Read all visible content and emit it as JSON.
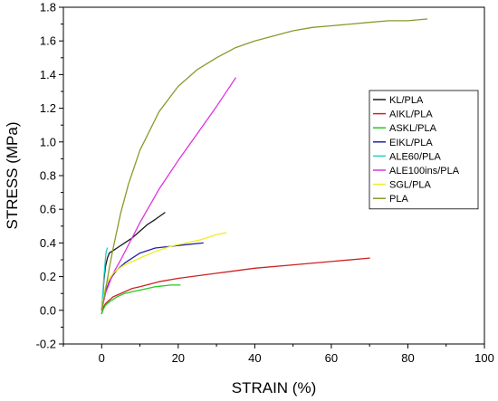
{
  "chart_data": {
    "type": "line",
    "title": "",
    "xlabel": "STRAIN (%)",
    "ylabel": "STRESS (MPa)",
    "xlim": [
      -10,
      100
    ],
    "ylim": [
      -0.2,
      1.8
    ],
    "xticks": [
      0,
      20,
      40,
      60,
      80,
      100
    ],
    "yticks": [
      -0.2,
      0.0,
      0.2,
      0.4,
      0.6,
      0.8,
      1.0,
      1.2,
      1.4,
      1.6,
      1.8
    ],
    "xtick_labels": [
      "0",
      "20",
      "40",
      "60",
      "80",
      "100"
    ],
    "ytick_labels": [
      "-0.2",
      "0.0",
      "0.2",
      "0.4",
      "0.6",
      "0.8",
      "1.0",
      "1.2",
      "1.4",
      "1.6",
      "1.8"
    ],
    "grid": false,
    "legend_position": "right",
    "series": [
      {
        "name": "KL/PLA",
        "color": "#1a1a1a",
        "x": [
          0,
          0.3,
          0.6,
          1.0,
          1.5,
          2,
          4,
          6,
          8,
          10,
          12,
          14,
          16.5
        ],
        "y": [
          0,
          0.08,
          0.18,
          0.26,
          0.31,
          0.34,
          0.37,
          0.4,
          0.43,
          0.47,
          0.51,
          0.54,
          0.58
        ]
      },
      {
        "name": "AIKL/PLA",
        "color": "#cc2222",
        "x": [
          0,
          0.5,
          1,
          2,
          3,
          5,
          8,
          10,
          15,
          20,
          30,
          40,
          50,
          60,
          70
        ],
        "y": [
          -0.02,
          0.02,
          0.04,
          0.06,
          0.08,
          0.1,
          0.13,
          0.14,
          0.17,
          0.19,
          0.22,
          0.25,
          0.27,
          0.29,
          0.31
        ]
      },
      {
        "name": "ASKL/PLA",
        "color": "#22cc22",
        "x": [
          0,
          0.5,
          1,
          2,
          4,
          6,
          8,
          10,
          14,
          18,
          20.5
        ],
        "y": [
          -0.02,
          0.01,
          0.03,
          0.05,
          0.08,
          0.1,
          0.11,
          0.12,
          0.14,
          0.15,
          0.15
        ]
      },
      {
        "name": "EIKL/PLA",
        "color": "#2222aa",
        "x": [
          0,
          0.5,
          1,
          2,
          3,
          4,
          6,
          8,
          10,
          14,
          18,
          22,
          26.5
        ],
        "y": [
          0,
          0.06,
          0.11,
          0.17,
          0.21,
          0.24,
          0.28,
          0.31,
          0.34,
          0.37,
          0.38,
          0.39,
          0.4
        ]
      },
      {
        "name": "ALE60/PLA",
        "color": "#22cccc",
        "x": [
          0,
          0.2,
          0.4,
          0.6,
          0.8,
          1.0,
          1.2,
          1.5
        ],
        "y": [
          0,
          0.06,
          0.13,
          0.2,
          0.26,
          0.31,
          0.35,
          0.37
        ]
      },
      {
        "name": "ALE100ins/PLA",
        "color": "#dd33dd",
        "x": [
          0,
          0.5,
          1,
          2,
          3,
          5,
          10,
          15,
          20,
          25,
          30,
          35
        ],
        "y": [
          0,
          0.05,
          0.1,
          0.16,
          0.22,
          0.3,
          0.52,
          0.72,
          0.89,
          1.05,
          1.21,
          1.38
        ]
      },
      {
        "name": "SGL/PLA",
        "color": "#eeee22",
        "x": [
          0,
          0.5,
          1,
          2,
          3,
          4,
          6,
          8,
          10,
          14,
          18,
          22,
          26,
          30,
          32.5
        ],
        "y": [
          0,
          0.08,
          0.14,
          0.19,
          0.22,
          0.24,
          0.27,
          0.29,
          0.31,
          0.35,
          0.38,
          0.4,
          0.42,
          0.45,
          0.46
        ]
      },
      {
        "name": "PLA",
        "color": "#8a9a2a",
        "x": [
          0,
          1,
          2,
          3,
          5,
          7,
          10,
          15,
          20,
          25,
          30,
          35,
          40,
          45,
          50,
          55,
          60,
          65,
          70,
          75,
          80,
          85
        ],
        "y": [
          0,
          0.12,
          0.25,
          0.37,
          0.58,
          0.75,
          0.95,
          1.18,
          1.33,
          1.43,
          1.5,
          1.56,
          1.6,
          1.63,
          1.66,
          1.68,
          1.69,
          1.7,
          1.71,
          1.72,
          1.72,
          1.73
        ]
      }
    ]
  }
}
